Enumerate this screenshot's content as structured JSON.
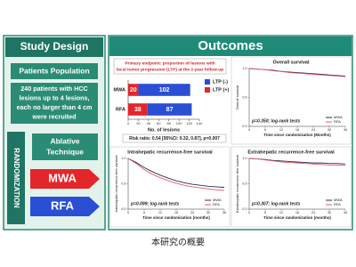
{
  "study_design": {
    "title": "Study Design",
    "population_title": "Patients Population",
    "population_lines": [
      "240 patients with  HCC",
      "lesions up to 4 lesions,",
      "each no larger than 4 cm",
      "were recruited"
    ],
    "randomization": "RANDOMIZATION",
    "technique_lines": [
      "Ablative",
      "Technique"
    ],
    "arms": [
      "MWA",
      "RFA"
    ]
  },
  "outcomes": {
    "title": "Outcomes"
  },
  "caption": "本研究の概要",
  "chart_data": [
    {
      "type": "bar",
      "orientation": "horizontal",
      "stacked": true,
      "title": "Primary endpoint: proportion of lesions with",
      "subtitle": "local tumor progression (LTP) at the 2-year follow-up",
      "categories": [
        "MWA",
        "RFA"
      ],
      "series": [
        {
          "name": "LTP (+)",
          "color": "#e3262a",
          "values": [
            20,
            38
          ]
        },
        {
          "name": "LTP (-)",
          "color": "#2a4fd4",
          "values": [
            102,
            87
          ]
        }
      ],
      "xlabel": "No. of lesions",
      "xlim": [
        0,
        140
      ],
      "xticks": [
        0,
        20,
        40,
        60,
        80,
        100,
        120,
        140
      ],
      "annotation": "Risk ratio: 0.54 [95%CI: 0.32, 0.87], p=0.007"
    },
    {
      "type": "line",
      "title": "Overall survival",
      "ylabel": "Overall survival",
      "xlabel": "Time since randomization (Months)",
      "x": [
        0,
        3,
        6,
        9,
        12,
        15,
        18,
        21,
        24,
        27,
        30,
        33,
        36
      ],
      "series": [
        {
          "name": "MWA",
          "color": "#2b2b55",
          "values": [
            1,
            0.99,
            0.98,
            0.97,
            0.95,
            0.94,
            0.93,
            0.92,
            0.91,
            0.9,
            0.89,
            0.88,
            0.87
          ]
        },
        {
          "name": "RFA",
          "color": "#e05a6a",
          "values": [
            1,
            0.99,
            0.98,
            0.96,
            0.95,
            0.93,
            0.92,
            0.91,
            0.9,
            0.89,
            0.88,
            0.87,
            0.86
          ]
        }
      ],
      "xlim": [
        0,
        36
      ],
      "xticks": [
        0,
        6,
        12,
        18,
        24,
        30,
        36
      ],
      "ylim": [
        0,
        1
      ],
      "yticks": [
        {
          "value": 0,
          "label": "0.0"
        },
        {
          "value": 0.5,
          "label": "0.5"
        },
        {
          "value": 1,
          "label": "1.0"
        }
      ],
      "annotation": "p=0.350; log-rank tests",
      "legend": "lower right"
    },
    {
      "type": "line",
      "title": "Intrahepatic recurrence-free survival",
      "ylabel": "Intrahepatic recurrence-free survival",
      "xlabel": "Time since randomization (months)",
      "x": [
        0,
        3,
        6,
        9,
        12,
        15,
        18,
        21,
        24,
        27,
        30,
        33,
        36
      ],
      "series": [
        {
          "name": "MWA",
          "color": "#2b2b55",
          "values": [
            1,
            0.92,
            0.82,
            0.74,
            0.67,
            0.61,
            0.56,
            0.52,
            0.49,
            0.47,
            0.45,
            0.44,
            0.43
          ]
        },
        {
          "name": "RFA",
          "color": "#e05a6a",
          "values": [
            1,
            0.9,
            0.78,
            0.69,
            0.62,
            0.56,
            0.51,
            0.47,
            0.44,
            0.42,
            0.4,
            0.38,
            0.37
          ]
        }
      ],
      "xlim": [
        0,
        36
      ],
      "xticks": [
        0,
        6,
        12,
        18,
        24,
        30,
        36
      ],
      "ylim": [
        0,
        1
      ],
      "yticks": [
        {
          "value": 0,
          "label": "0.0"
        },
        {
          "value": 0.5,
          "label": "0.5"
        },
        {
          "value": 1,
          "label": "1.0"
        }
      ],
      "annotation": "p=0.099; log-rank tests",
      "legend": "lower right"
    },
    {
      "type": "line",
      "title": "Extrahepatic recurrence-free survival",
      "ylabel": "Extrahepatic recurrence-free survival",
      "xlabel": "Time since randomization (months)",
      "x": [
        0,
        3,
        6,
        9,
        12,
        15,
        18,
        21,
        24,
        27,
        30,
        33,
        36
      ],
      "series": [
        {
          "name": "MWA",
          "color": "#2b2b55",
          "values": [
            1,
            0.99,
            0.98,
            0.96,
            0.95,
            0.94,
            0.93,
            0.92,
            0.91,
            0.91,
            0.9,
            0.9,
            0.89
          ]
        },
        {
          "name": "RFA",
          "color": "#e05a6a",
          "values": [
            1,
            0.99,
            0.97,
            0.95,
            0.93,
            0.92,
            0.91,
            0.9,
            0.89,
            0.88,
            0.87,
            0.87,
            0.86
          ]
        }
      ],
      "xlim": [
        0,
        36
      ],
      "xticks": [
        0,
        6,
        12,
        18,
        24,
        30,
        36
      ],
      "ylim": [
        0,
        1
      ],
      "yticks": [
        {
          "value": 0,
          "label": "0.0"
        },
        {
          "value": 0.5,
          "label": "0.5"
        },
        {
          "value": 1,
          "label": "1.0"
        }
      ],
      "annotation": "p=0.307; log-rank tests",
      "legend": "lower right"
    }
  ]
}
